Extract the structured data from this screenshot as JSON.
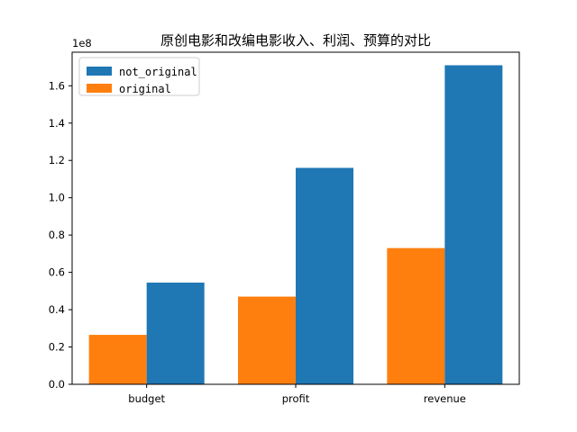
{
  "chart_data": {
    "type": "bar",
    "title": "原创电影和改编电影收入、利润、预算的对比",
    "categories": [
      "budget",
      "profit",
      "revenue"
    ],
    "series": [
      {
        "name": "original",
        "color": "#ff7f0e",
        "values": [
          26500000,
          47000000,
          73000000
        ]
      },
      {
        "name": "not_original",
        "color": "#1f77b4",
        "values": [
          54500000,
          116000000,
          171000000
        ]
      }
    ],
    "legend_order": [
      "not_original",
      "original"
    ],
    "legend_position": "top-left",
    "y_multiplier_label": "1e8",
    "y_scale": 100000000,
    "ylim": [
      0,
      178000000
    ],
    "yticks": [
      0,
      20000000,
      40000000,
      60000000,
      80000000,
      100000000,
      120000000,
      140000000,
      160000000
    ],
    "ytick_labels": [
      "0.0",
      "0.2",
      "0.4",
      "0.6",
      "0.8",
      "1.0",
      "1.2",
      "1.4",
      "1.6"
    ],
    "grid": false
  }
}
